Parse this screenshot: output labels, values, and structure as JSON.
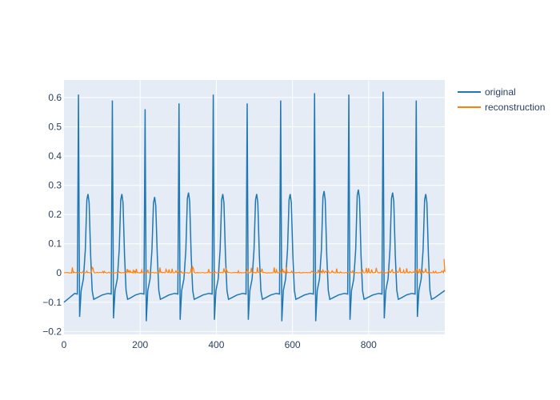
{
  "chart_data": {
    "type": "line",
    "title": "",
    "xlabel": "",
    "ylabel": "",
    "xlim": [
      0,
      1000
    ],
    "ylim": [
      -0.21,
      0.66
    ],
    "grid": true,
    "legend_position": "top-right",
    "xticks": [
      0,
      200,
      400,
      600,
      800
    ],
    "yticks": [
      -0.2,
      -0.1,
      0,
      0.1,
      0.2,
      0.3,
      0.4,
      0.5,
      0.6
    ],
    "xtick_labels": [
      "0",
      "200",
      "400",
      "600",
      "800"
    ],
    "ytick_labels": [
      "−0.2",
      "−0.1",
      "0",
      "0.1",
      "0.2",
      "0.3",
      "0.4",
      "0.5",
      "0.6"
    ],
    "series": [
      {
        "name": "original",
        "color": "#1f77b4",
        "description": "periodic spikes",
        "beat_peaks": [
          {
            "x": 38,
            "peak": 0.61,
            "trough": -0.15,
            "t_peak": 0.27
          },
          {
            "x": 127,
            "peak": 0.59,
            "trough": -0.155,
            "t_peak": 0.27
          },
          {
            "x": 213,
            "peak": 0.56,
            "trough": -0.165,
            "t_peak": 0.26
          },
          {
            "x": 302,
            "peak": 0.58,
            "trough": -0.16,
            "t_peak": 0.275
          },
          {
            "x": 392,
            "peak": 0.61,
            "trough": -0.16,
            "t_peak": 0.27
          },
          {
            "x": 481,
            "peak": 0.58,
            "trough": -0.16,
            "t_peak": 0.27
          },
          {
            "x": 569,
            "peak": 0.59,
            "trough": -0.165,
            "t_peak": 0.27
          },
          {
            "x": 658,
            "peak": 0.615,
            "trough": -0.165,
            "t_peak": 0.28
          },
          {
            "x": 748,
            "peak": 0.61,
            "trough": -0.16,
            "t_peak": 0.285
          },
          {
            "x": 838,
            "peak": 0.62,
            "trough": -0.155,
            "t_peak": 0.275
          },
          {
            "x": 925,
            "peak": 0.59,
            "trough": -0.15,
            "t_peak": 0.27
          }
        ],
        "baseline": -0.07
      },
      {
        "name": "reconstruction",
        "color": "#ff7f0e",
        "description": "noise near zero",
        "range": [
          0,
          0.05
        ]
      }
    ]
  }
}
